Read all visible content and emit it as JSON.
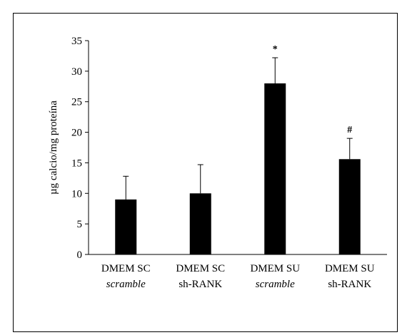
{
  "chart_data": {
    "type": "bar",
    "title": "",
    "xlabel": "",
    "ylabel": "µg calcio/mg proteína",
    "ylim": [
      0,
      35
    ],
    "yticks": [
      0,
      5,
      10,
      15,
      20,
      25,
      30,
      35
    ],
    "grid": false,
    "categories": [
      {
        "line1": "DMEM SC",
        "line2": "scramble",
        "line2_italic": true
      },
      {
        "line1": "DMEM SC",
        "line2": "sh-RANK",
        "line2_italic": false
      },
      {
        "line1": "DMEM SU",
        "line2": "scramble",
        "line2_italic": true
      },
      {
        "line1": "DMEM SU",
        "line2": "sh-RANK",
        "line2_italic": false
      }
    ],
    "values": [
      9,
      10,
      28,
      15.6
    ],
    "error_plus": [
      3.8,
      4.7,
      4.2,
      3.4
    ],
    "annotations": [
      "",
      "",
      "*",
      "#"
    ],
    "bar_color": "#000000"
  }
}
